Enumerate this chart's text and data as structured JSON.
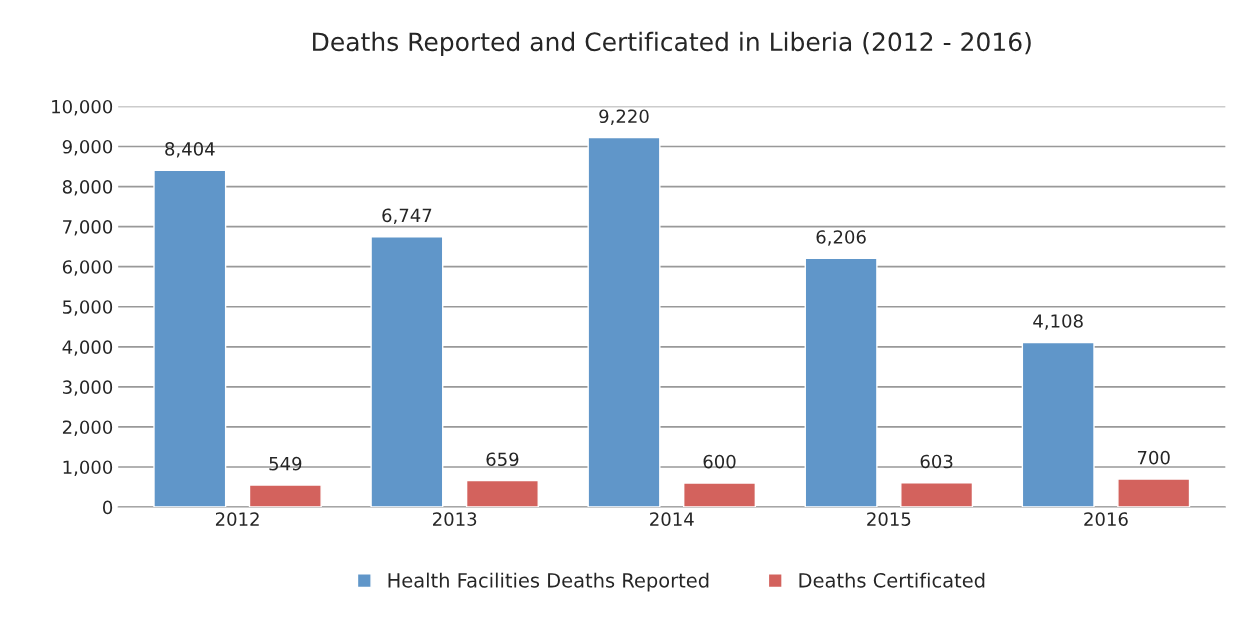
{
  "chart_data": {
    "type": "bar",
    "title": "Deaths Reported and Certificated in Liberia (2012 - 2016)",
    "categories": [
      "2012",
      "2013",
      "2014",
      "2015",
      "2016"
    ],
    "series": [
      {
        "name": "Health Facilities Deaths Reported",
        "color": "#6096c9",
        "values": [
          8404,
          6747,
          9220,
          6206,
          4108
        ],
        "value_labels": [
          "8,404",
          "6,747",
          "9,220",
          "6,206",
          "4,108"
        ]
      },
      {
        "name": "Deaths Certificated",
        "color": "#d3625d",
        "values": [
          549,
          659,
          600,
          603,
          700
        ],
        "value_labels": [
          "549",
          "659",
          "600",
          "603",
          "700"
        ]
      }
    ],
    "ylim": [
      0,
      10000
    ],
    "yticks": [
      {
        "value": 0,
        "label": "0"
      },
      {
        "value": 1000,
        "label": "1,000"
      },
      {
        "value": 2000,
        "label": "2,000"
      },
      {
        "value": 3000,
        "label": "3,000"
      },
      {
        "value": 4000,
        "label": "4,000"
      },
      {
        "value": 5000,
        "label": "5,000"
      },
      {
        "value": 6000,
        "label": "6,000"
      },
      {
        "value": 7000,
        "label": "7,000"
      },
      {
        "value": 8000,
        "label": "8,000"
      },
      {
        "value": 9000,
        "label": "9,000"
      },
      {
        "value": 10000,
        "label": "10,000"
      }
    ],
    "grid": "y",
    "legend": "bottom"
  }
}
